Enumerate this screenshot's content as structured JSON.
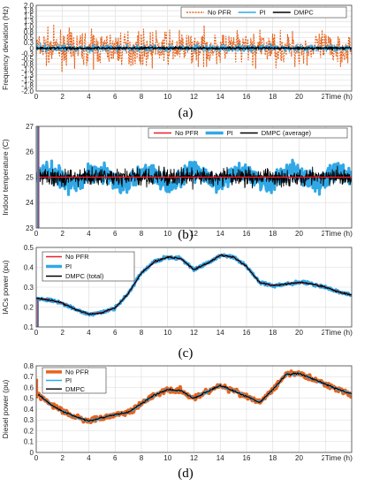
{
  "colors": {
    "nopfr": "#e8631c",
    "pi": "#31a8e6",
    "dmpc": "#000000",
    "red": "#e8202a"
  },
  "chart_data": [
    {
      "type": "line",
      "caption": "(a)",
      "ylabel": "Frequency deviation (Hz)",
      "xlabel": "Time (h)",
      "xlim": [
        0,
        24
      ],
      "ylim": [
        -2,
        2
      ],
      "xticks": [
        "0",
        "2",
        "4",
        "6",
        "8",
        "10",
        "12",
        "14",
        "16",
        "18",
        "20",
        "22"
      ],
      "yticks": [
        "-2.0",
        "-1.8",
        "-1.5",
        "-1.3",
        "-1.0",
        "-0.8",
        "-0.5",
        "-0.3",
        "0",
        "0.3",
        "0.5",
        "0.8",
        "1.0",
        "1.3",
        "1.5",
        "1.8",
        "2.0"
      ],
      "grid": true,
      "legend_position": "top-right",
      "series": [
        {
          "name": "No PFR",
          "style": "dotted",
          "envelope": [
            -1.9,
            1.9
          ]
        },
        {
          "name": "PI",
          "style": "solid",
          "envelope": [
            -0.35,
            0.35
          ]
        },
        {
          "name": "DMPC",
          "style": "solid",
          "envelope": [
            -0.15,
            0.15
          ]
        }
      ]
    },
    {
      "type": "line",
      "caption": "(b)",
      "ylabel": "Indoor temperature (C)",
      "xlabel": "Time (h)",
      "xlim": [
        0,
        24
      ],
      "ylim": [
        23,
        27
      ],
      "xticks": [
        "0",
        "2",
        "4",
        "6",
        "8",
        "10",
        "12",
        "14",
        "16",
        "18",
        "20",
        "22"
      ],
      "yticks": [
        "23",
        "24",
        "25",
        "26",
        "27"
      ],
      "grid": true,
      "legend_position": "top-right",
      "series": [
        {
          "name": "No PFR",
          "style": "solid",
          "value": 25.0
        },
        {
          "name": "PI",
          "style": "thick",
          "envelope": [
            24.0,
            26.1
          ]
        },
        {
          "name": "DMPC (average)",
          "style": "solid",
          "envelope": [
            24.1,
            25.9
          ]
        }
      ]
    },
    {
      "type": "line",
      "caption": "(c)",
      "ylabel": "IACs power (pu)",
      "xlabel": "Time (h)",
      "xlim": [
        0,
        24
      ],
      "ylim": [
        0.05,
        0.55
      ],
      "xticks": [
        "0",
        "2",
        "4",
        "6",
        "8",
        "10",
        "12",
        "14",
        "16",
        "18",
        "20",
        "22"
      ],
      "yticks": [
        "0.1",
        "0.2",
        "0.3",
        "0.4",
        "0.5"
      ],
      "grid": true,
      "legend_position": "top-left",
      "series": [
        {
          "name": "No PFR",
          "style": "solid"
        },
        {
          "name": "PI",
          "style": "thick"
        },
        {
          "name": "DMPC (total)",
          "style": "solid"
        }
      ],
      "x": [
        0,
        1,
        2,
        3,
        4,
        5,
        6,
        7,
        8,
        9,
        10,
        11,
        12,
        13,
        14,
        15,
        16,
        17,
        18,
        19,
        20,
        21,
        22,
        23,
        24
      ],
      "y": [
        0.23,
        0.22,
        0.2,
        0.16,
        0.13,
        0.14,
        0.17,
        0.26,
        0.39,
        0.46,
        0.49,
        0.48,
        0.41,
        0.45,
        0.5,
        0.49,
        0.43,
        0.33,
        0.31,
        0.32,
        0.33,
        0.32,
        0.3,
        0.27,
        0.25
      ]
    },
    {
      "type": "line",
      "caption": "(d)",
      "ylabel": "Diesel power (pu)",
      "xlabel": "Time (h)",
      "xlim": [
        0,
        24
      ],
      "ylim": [
        0,
        0.8
      ],
      "xticks": [
        "0",
        "2",
        "4",
        "6",
        "8",
        "10",
        "12",
        "14",
        "16",
        "18",
        "20",
        "22"
      ],
      "yticks": [
        "0",
        "0.1",
        "0.2",
        "0.3",
        "0.4",
        "0.5",
        "0.6",
        "0.7",
        "0.8"
      ],
      "grid": true,
      "legend_position": "top-left",
      "series": [
        {
          "name": "No PFR",
          "style": "thick"
        },
        {
          "name": "PI",
          "style": "solid"
        },
        {
          "name": "DMPC",
          "style": "solid"
        }
      ],
      "x": [
        0,
        1,
        2,
        3,
        4,
        5,
        6,
        7,
        8,
        9,
        10,
        11,
        12,
        13,
        14,
        15,
        16,
        17,
        18,
        19,
        20,
        21,
        22,
        23,
        24
      ],
      "y": [
        0.55,
        0.45,
        0.38,
        0.33,
        0.29,
        0.32,
        0.35,
        0.37,
        0.45,
        0.53,
        0.58,
        0.57,
        0.5,
        0.56,
        0.62,
        0.57,
        0.52,
        0.46,
        0.58,
        0.72,
        0.73,
        0.68,
        0.63,
        0.58,
        0.54
      ]
    }
  ]
}
